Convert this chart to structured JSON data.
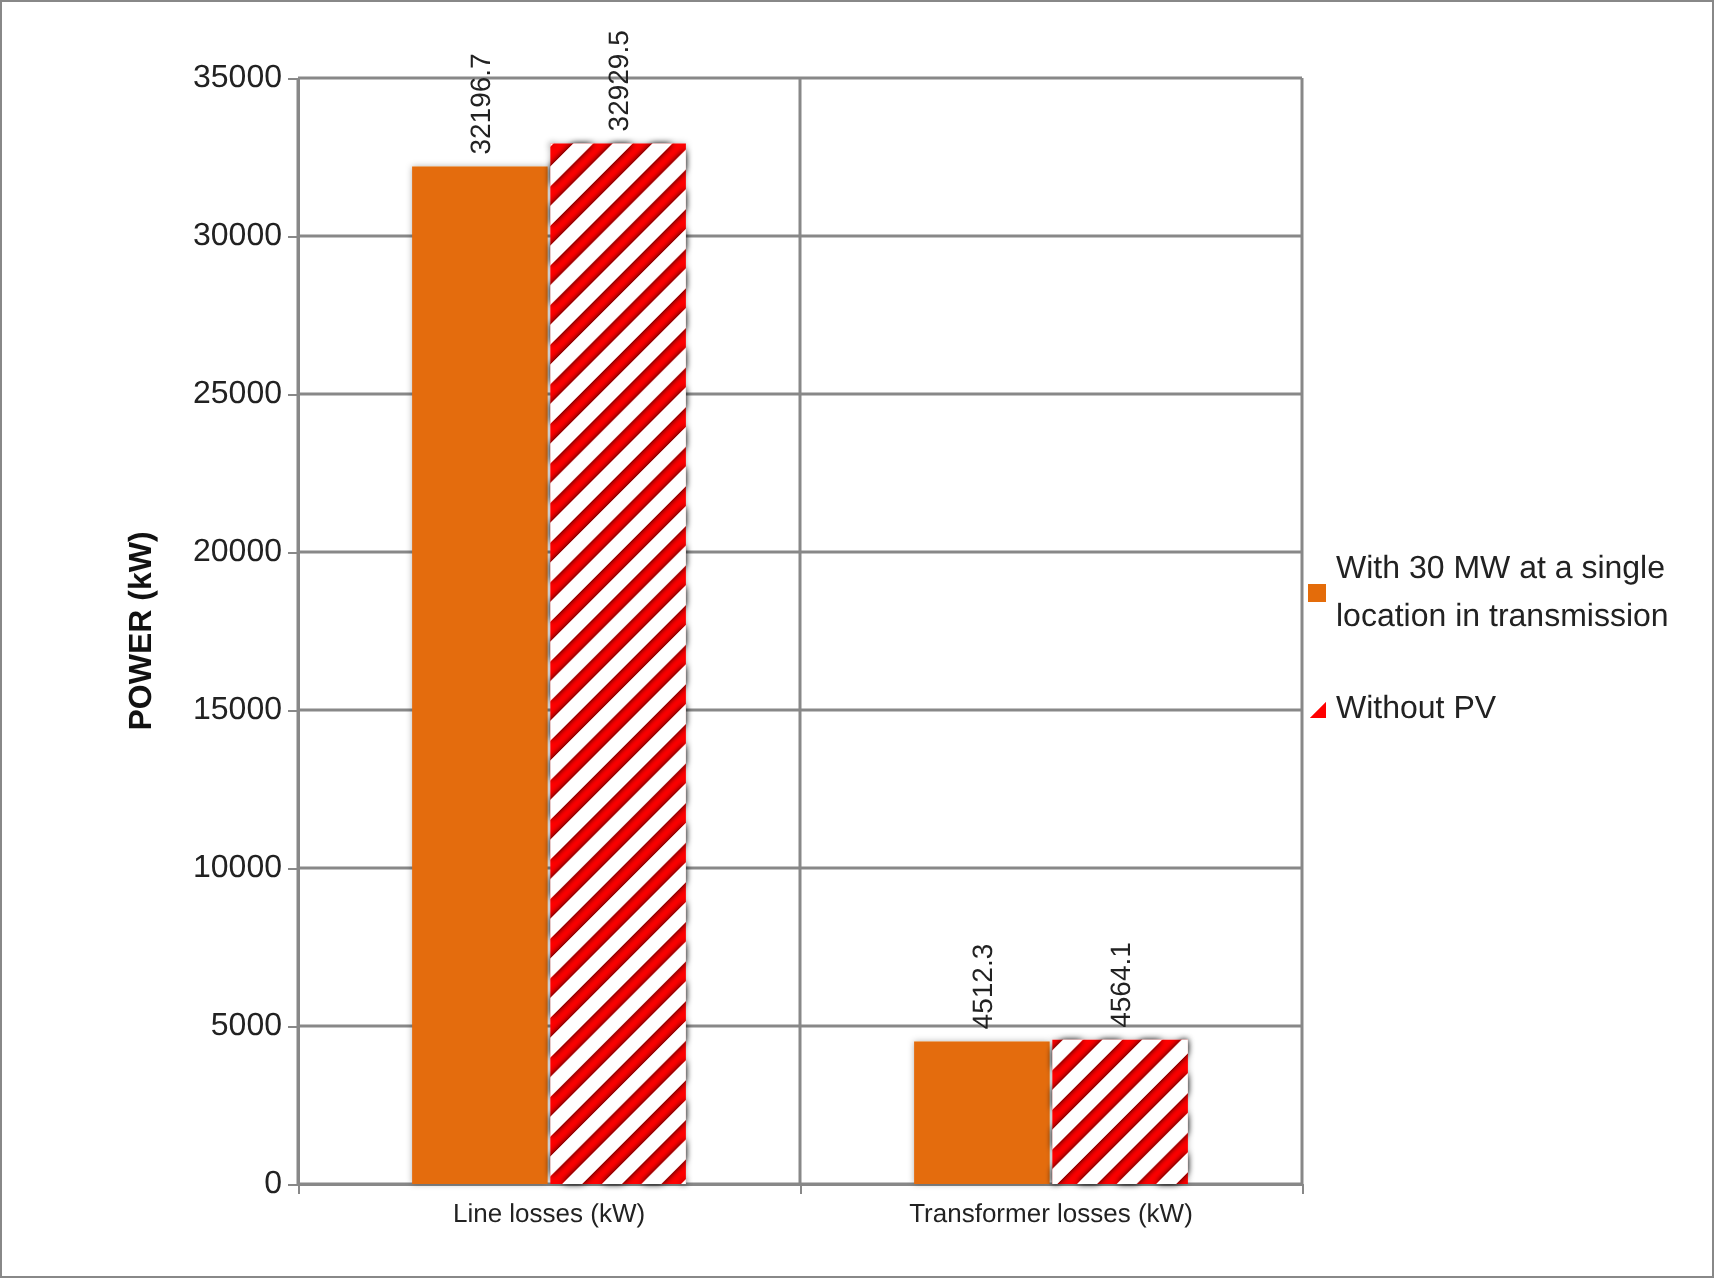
{
  "chart_data": {
    "type": "bar",
    "ylabel": "POWER (kW)",
    "categories": [
      "Line losses (kW)",
      "Transformer losses (kW)"
    ],
    "series": [
      {
        "name": "With 30 MW at a single location in transmission",
        "color": "#e46c0a",
        "values": [
          32196.7,
          4512.3
        ]
      },
      {
        "name": "Without PV",
        "color": "#ff0000",
        "values": [
          32929.5,
          4564.1
        ]
      }
    ],
    "ylim": [
      0,
      35000
    ],
    "yticks": [
      0,
      5000,
      10000,
      15000,
      20000,
      25000,
      30000,
      35000
    ],
    "grid": true,
    "legend": "right",
    "data_labels": true
  }
}
